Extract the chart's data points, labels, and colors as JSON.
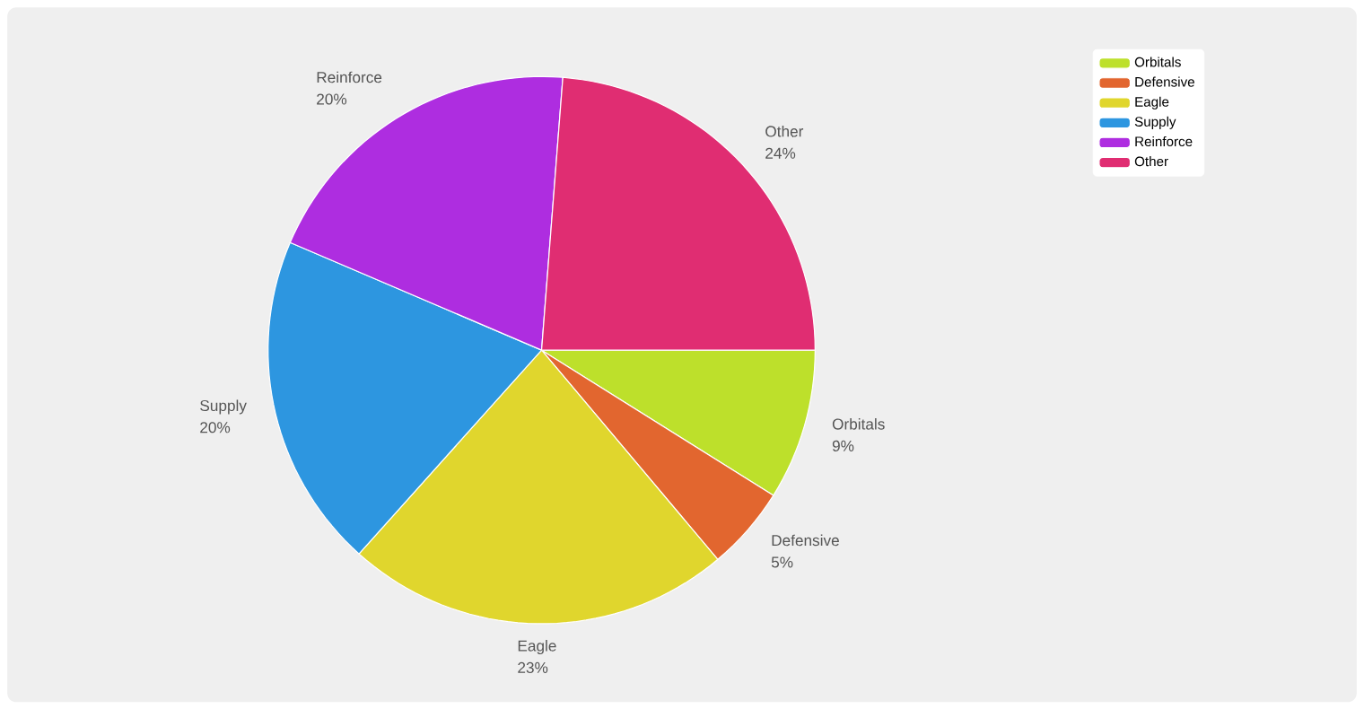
{
  "chart_data": {
    "type": "pie",
    "categories": [
      "Orbitals",
      "Defensive",
      "Eagle",
      "Supply",
      "Reinforce",
      "Other"
    ],
    "values": [
      9,
      5,
      23,
      20,
      20,
      24
    ],
    "value_labels": [
      "9%",
      "5%",
      "23%",
      "20%",
      "20%",
      "24%"
    ],
    "colors": [
      "#bde02b",
      "#e2662f",
      "#e0d62d",
      "#2d96e0",
      "#ae2de0",
      "#e02d72"
    ],
    "legend": "top right"
  }
}
